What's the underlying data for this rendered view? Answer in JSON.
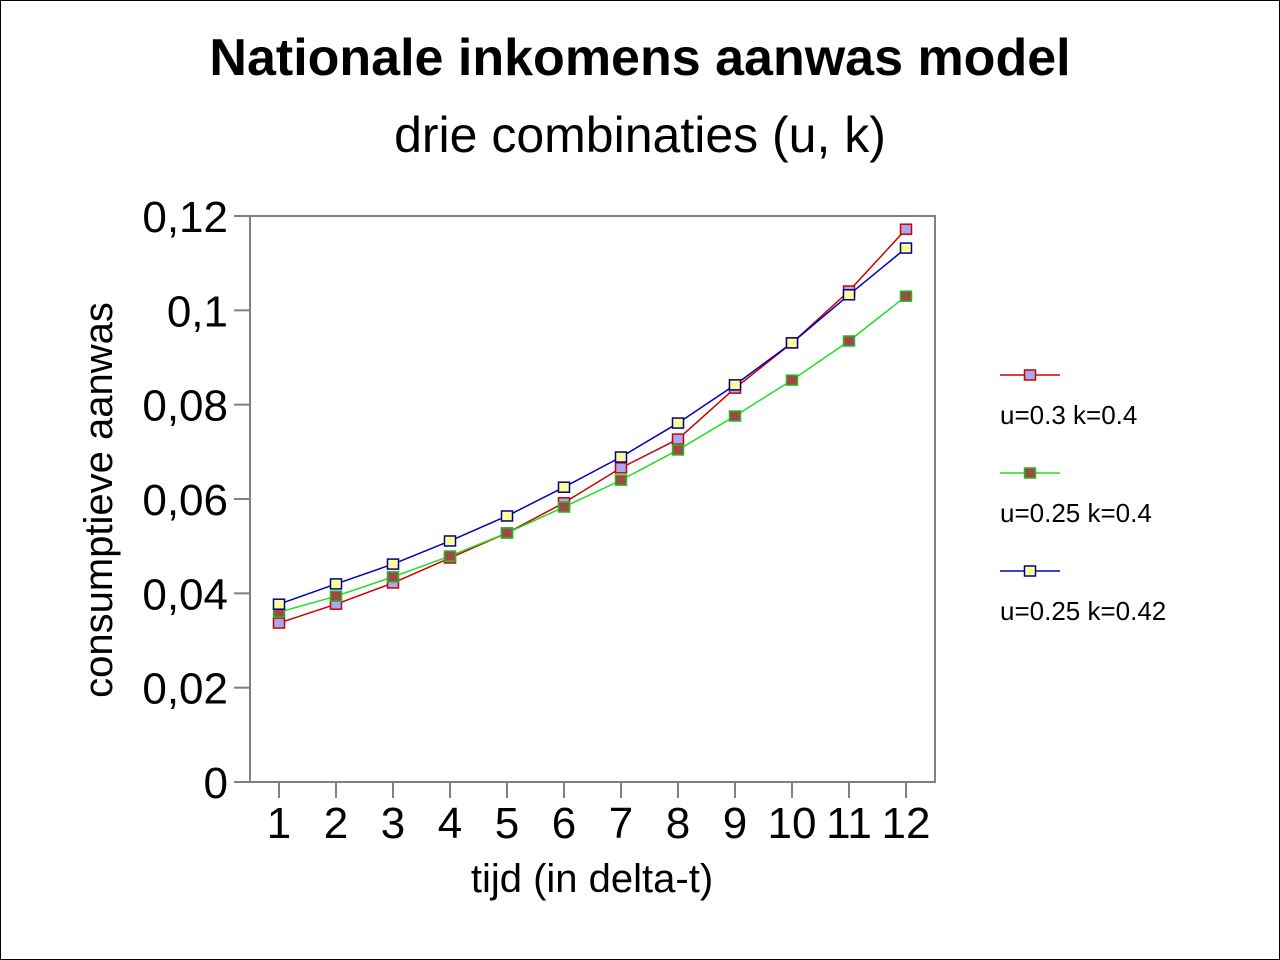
{
  "chart_data": {
    "type": "line",
    "title": "Nationale inkomens aanwas model",
    "subtitle": "drie combinaties (u, k)",
    "xlabel": "tijd (in delta-t)",
    "ylabel": "consumptieve aanwas",
    "categories": [
      "1",
      "2",
      "3",
      "4",
      "5",
      "6",
      "7",
      "8",
      "9",
      "10",
      "11",
      "12"
    ],
    "yticks": [
      "0",
      "0,02",
      "0,04",
      "0,06",
      "0,08",
      "0,1",
      "0,12"
    ],
    "ylim": [
      0,
      0.12
    ],
    "grid": false,
    "legend_position": "right",
    "series": [
      {
        "name": "u=0.3 k=0.4",
        "line_color": "#cc0000",
        "marker_fill": "#a8a8f0",
        "marker_edge": "#cc0000",
        "values": [
          0.0337,
          0.0377,
          0.0422,
          0.0475,
          0.0528,
          0.0592,
          0.0666,
          0.0727,
          0.0835,
          0.0931,
          0.1041,
          0.1172
        ]
      },
      {
        "name": "u=0.25 k=0.4",
        "line_color": "#22dd22",
        "marker_fill": "#a04848",
        "marker_edge": "#22bb22",
        "values": [
          0.036,
          0.0394,
          0.0435,
          0.0479,
          0.0528,
          0.0583,
          0.064,
          0.0704,
          0.0776,
          0.0852,
          0.0935,
          0.103
        ]
      },
      {
        "name": "u=0.25 k=0.42",
        "line_color": "#0000bb",
        "marker_fill": "#ffff99",
        "marker_edge": "#000088",
        "values": [
          0.0377,
          0.042,
          0.0462,
          0.0511,
          0.0564,
          0.0625,
          0.0689,
          0.0761,
          0.0842,
          0.0931,
          0.1033,
          0.1132
        ]
      }
    ]
  }
}
